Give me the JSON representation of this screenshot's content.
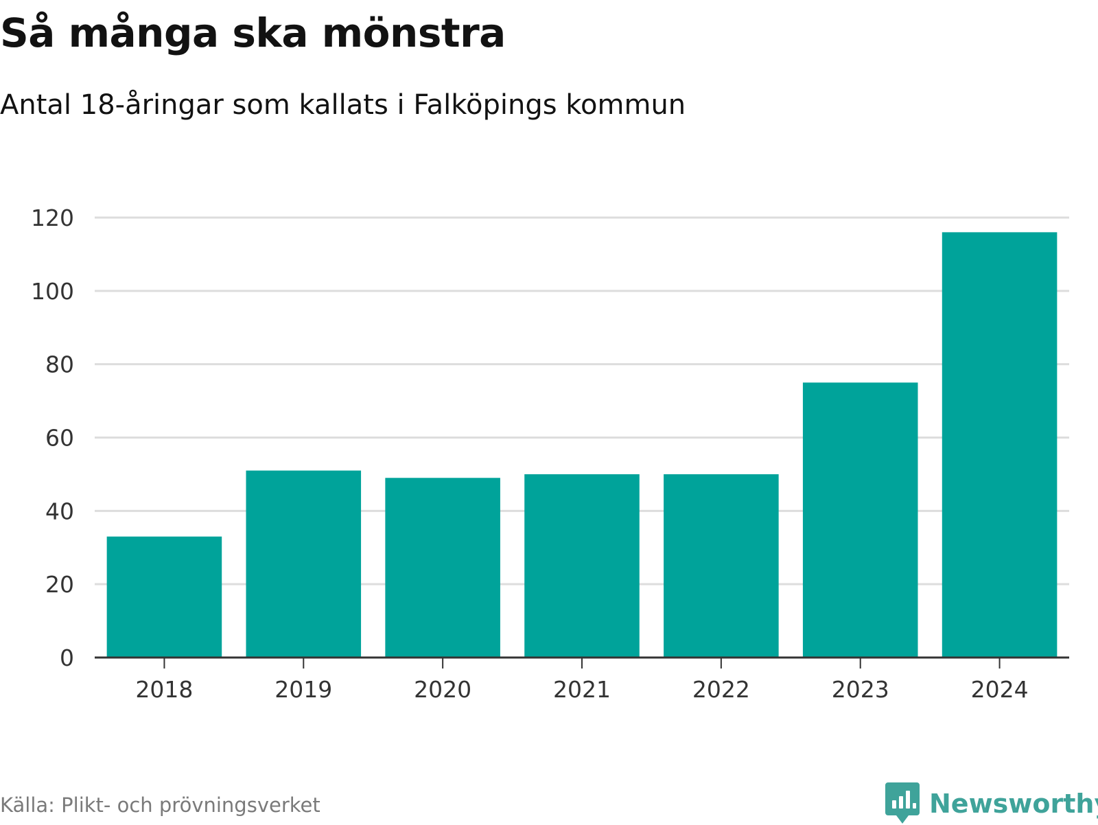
{
  "title": "Så många ska mönstra",
  "subtitle": "Antal 18-åringar som kallats i Falköpings kommun",
  "source": "Källa: Plikt- och prövningsverket",
  "logo": {
    "text": "Newsworthy",
    "icon": "newsworthy-logo-icon"
  },
  "colors": {
    "bar": "#00A39A",
    "grid": "#dddddd",
    "axis": "#333333",
    "logo": "#3fa39a"
  },
  "chart_data": {
    "type": "bar",
    "title": "Så många ska mönstra",
    "subtitle": "Antal 18-åringar som kallats i Falköpings kommun",
    "xlabel": "",
    "ylabel": "",
    "categories": [
      "2018",
      "2019",
      "2020",
      "2021",
      "2022",
      "2023",
      "2024"
    ],
    "values": [
      33,
      51,
      49,
      50,
      50,
      75,
      116
    ],
    "ylim": [
      0,
      120
    ],
    "yticks": [
      0,
      20,
      40,
      60,
      80,
      100,
      120
    ],
    "grid": true,
    "legend": "none"
  }
}
